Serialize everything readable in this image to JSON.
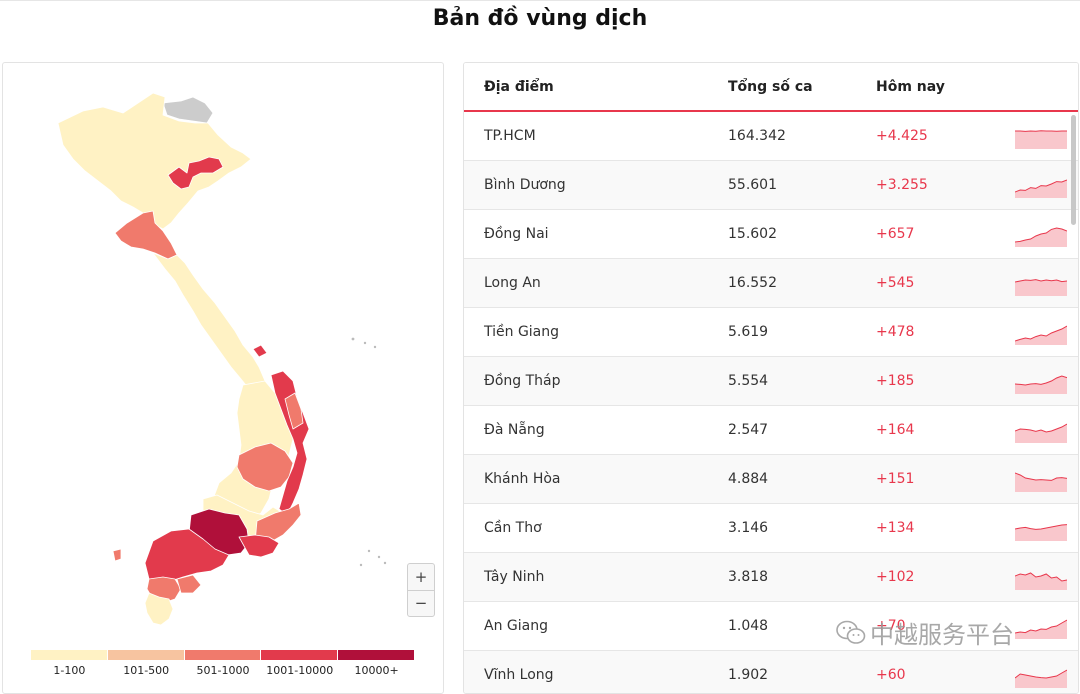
{
  "title": "Bản đồ vùng dịch",
  "colors": {
    "level1": "#fff2c4",
    "level2": "#f7c4a0",
    "level3": "#f07a6c",
    "level4": "#e23a4c",
    "level5": "#b0103a",
    "gray": "#cccccc",
    "accent": "#e8374c",
    "spark_fill": "#f9c7cc"
  },
  "legend": {
    "items": [
      {
        "label": "1-100",
        "color": "#fff2c4"
      },
      {
        "label": "101-500",
        "color": "#f7c4a0"
      },
      {
        "label": "501-1000",
        "color": "#f07a6c"
      },
      {
        "label": "1001-10000",
        "color": "#e23a4c"
      },
      {
        "label": "10000+",
        "color": "#b0103a"
      }
    ]
  },
  "zoom": {
    "in_label": "+",
    "out_label": "−"
  },
  "table": {
    "headers": {
      "place": "Địa điểm",
      "total": "Tổng số ca",
      "today": "Hôm nay"
    },
    "rows": [
      {
        "name": "TP.HCM",
        "total": "164.342",
        "today": "+4.425",
        "trend": [
          80,
          80,
          78,
          80,
          79,
          81,
          80,
          80,
          79,
          80,
          80
        ]
      },
      {
        "name": "Bình Dương",
        "total": "55.601",
        "today": "+3.255",
        "trend": [
          20,
          30,
          28,
          42,
          38,
          52,
          50,
          60,
          72,
          70,
          80
        ]
      },
      {
        "name": "Đồng Nai",
        "total": "15.602",
        "today": "+657",
        "trend": [
          15,
          18,
          25,
          30,
          45,
          55,
          60,
          78,
          85,
          80,
          70
        ]
      },
      {
        "name": "Long An",
        "total": "16.552",
        "today": "+545",
        "trend": [
          60,
          65,
          70,
          68,
          72,
          65,
          70,
          66,
          70,
          62,
          65
        ]
      },
      {
        "name": "Tiền Giang",
        "total": "5.619",
        "today": "+478",
        "trend": [
          10,
          18,
          25,
          20,
          32,
          40,
          35,
          50,
          60,
          70,
          85
        ]
      },
      {
        "name": "Đồng Tháp",
        "total": "5.554",
        "today": "+185",
        "trend": [
          40,
          38,
          35,
          40,
          42,
          38,
          45,
          55,
          70,
          80,
          72
        ]
      },
      {
        "name": "Đà Nẵng",
        "total": "2.547",
        "today": "+164",
        "trend": [
          50,
          60,
          58,
          55,
          48,
          55,
          45,
          50,
          60,
          70,
          85
        ]
      },
      {
        "name": "Khánh Hòa",
        "total": "4.884",
        "today": "+151",
        "trend": [
          85,
          75,
          60,
          55,
          50,
          52,
          50,
          48,
          60,
          62,
          58
        ]
      },
      {
        "name": "Cần Thơ",
        "total": "3.146",
        "today": "+134",
        "trend": [
          50,
          55,
          58,
          52,
          48,
          50,
          55,
          60,
          65,
          70,
          72
        ]
      },
      {
        "name": "Tây Ninh",
        "total": "3.818",
        "today": "+102",
        "trend": [
          60,
          70,
          65,
          75,
          55,
          60,
          70,
          50,
          55,
          35,
          40
        ]
      },
      {
        "name": "An Giang",
        "total": "1.048",
        "today": "+70",
        "trend": [
          20,
          25,
          22,
          35,
          30,
          40,
          38,
          50,
          55,
          70,
          85
        ]
      },
      {
        "name": "Vĩnh Long",
        "total": "1.902",
        "today": "+60",
        "trend": [
          40,
          60,
          55,
          50,
          45,
          42,
          40,
          45,
          50,
          65,
          80
        ]
      }
    ]
  },
  "watermark": {
    "text": "中越服务平台",
    "icon": "wechat-icon"
  }
}
